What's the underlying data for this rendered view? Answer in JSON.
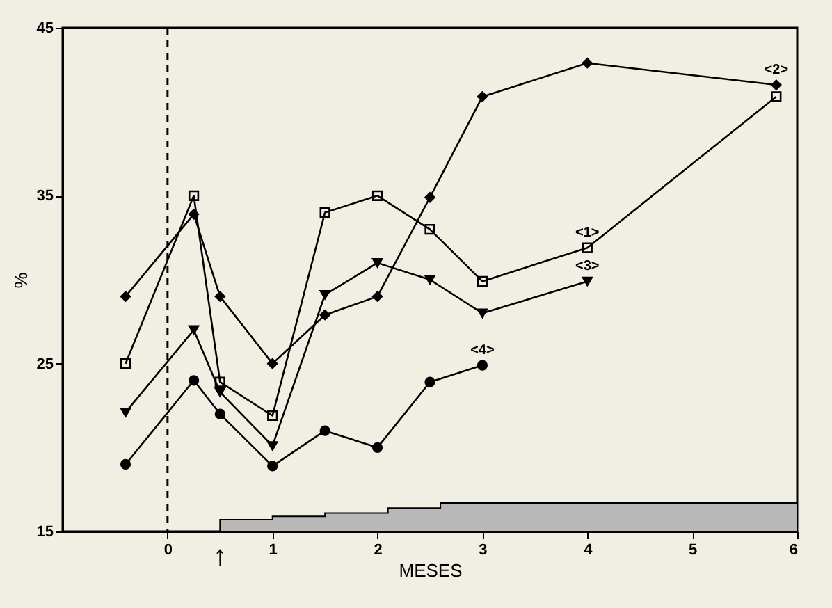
{
  "chart_data": {
    "type": "line",
    "xlabel": "MESES",
    "ylabel": "%",
    "xlim": [
      -1,
      6
    ],
    "xticks": [
      0,
      1,
      2,
      3,
      4,
      5,
      6
    ],
    "ylim": [
      15,
      45
    ],
    "yticks": [
      15,
      25,
      35,
      45
    ],
    "grid": false,
    "line_style": "solid",
    "x": [
      -0.4,
      0.25,
      0.5,
      1,
      1.5,
      2,
      2.5,
      3,
      4,
      5.8
    ],
    "series": [
      {
        "name": "<1>",
        "color": "#000000",
        "marker": "square",
        "values": [
          25,
          35,
          23.9,
          21.9,
          34,
          35,
          33,
          29.9,
          31.9,
          40.9
        ]
      },
      {
        "name": "<2>",
        "color": "#000000",
        "marker": "diamond",
        "values": [
          29,
          33.9,
          29,
          25,
          27.9,
          29,
          34.9,
          40.9,
          42.9,
          41.6
        ]
      },
      {
        "name": "<3>",
        "color": "#000000",
        "marker": "triangle",
        "values": [
          22.1,
          27,
          23.3,
          20.1,
          29.1,
          31,
          30,
          28,
          29.9,
          null
        ]
      },
      {
        "name": "<4>",
        "color": "#000000",
        "marker": "circle",
        "values": [
          19,
          24,
          22,
          18.9,
          21,
          20,
          23.9,
          24.9,
          null,
          null
        ]
      },
      {
        "type": "area",
        "color": "#b8b8b8",
        "x": [
          0.5,
          1,
          1.5,
          2.1,
          2.6,
          6
        ],
        "values": [
          15.7,
          15.9,
          16.1,
          16.4,
          16.7,
          16.7
        ]
      }
    ],
    "ref_lines": [
      {
        "axis": "x",
        "value": 0,
        "line_style": "dashed",
        "color": "#000000"
      }
    ],
    "annotations": [
      {
        "text": "↑",
        "x": 0.5,
        "y": 15
      }
    ]
  }
}
